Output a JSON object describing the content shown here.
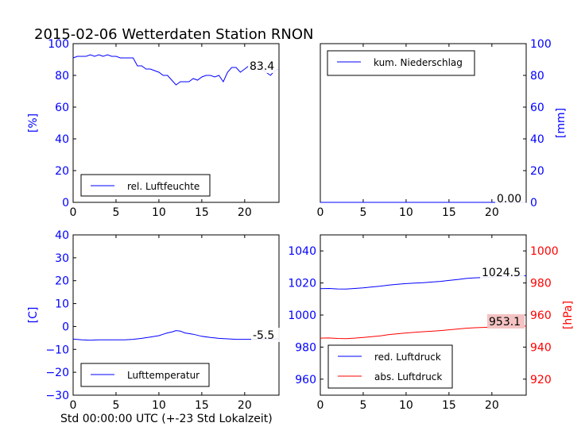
{
  "figure": {
    "title": "2015-02-06 Wetterdaten Station RNON",
    "xlabel": "Std 00:00:00 UTC (+-23 Std Lokalzeit)"
  },
  "colors": {
    "blue": "#0000ff",
    "red": "#ff0000",
    "annot_bg_red": "#f4c2c2"
  },
  "chart_data": [
    {
      "id": "humidity",
      "type": "line",
      "ylabel": "[%]",
      "xlim": [
        0,
        24
      ],
      "ylim": [
        0,
        100
      ],
      "xticks": [
        0,
        5,
        10,
        15,
        20
      ],
      "yticks": [
        0,
        20,
        40,
        60,
        80,
        100
      ],
      "legend": {
        "label": "rel. Luftfeuchte",
        "placement": "lower-left"
      },
      "annotation": "83.4",
      "series": [
        {
          "name": "rel. Luftfeuchte",
          "color": "#0000ff",
          "x": [
            0,
            0.5,
            1,
            1.5,
            2,
            2.5,
            3,
            3.5,
            4,
            4.5,
            5,
            5.5,
            6,
            6.5,
            7,
            7.5,
            8,
            8.5,
            9,
            9.5,
            10,
            10.5,
            11,
            11.5,
            12,
            12.5,
            13,
            13.5,
            14,
            14.5,
            15,
            15.5,
            16,
            16.5,
            17,
            17.5,
            18,
            18.5,
            19,
            19.5,
            20,
            20.5,
            21,
            21.5,
            22,
            22.5,
            23,
            23.5,
            24
          ],
          "y": [
            91,
            92,
            92,
            92,
            93,
            92,
            93,
            92,
            93,
            92,
            92,
            91,
            91,
            91,
            91,
            86,
            86,
            84,
            84,
            83,
            82,
            80,
            80,
            77,
            74,
            76,
            76,
            76,
            78,
            77,
            79,
            80,
            80,
            79,
            80,
            76,
            82,
            85,
            85,
            82,
            84,
            86,
            85,
            86,
            84,
            82,
            80,
            83,
            84
          ]
        }
      ]
    },
    {
      "id": "precipitation",
      "type": "line",
      "ylabel": "[mm]",
      "xlim": [
        0,
        24
      ],
      "ylim": [
        0,
        100
      ],
      "xticks": [
        0,
        5,
        10,
        15,
        20
      ],
      "yticks": [
        0,
        20,
        40,
        60,
        80,
        100
      ],
      "legend": {
        "label": "kum. Niederschlag",
        "placement": "upper-left"
      },
      "annotation": "0.00",
      "series": [
        {
          "name": "kum. Niederschlag",
          "color": "#0000ff",
          "x": [
            0,
            24
          ],
          "y": [
            0,
            0
          ]
        }
      ]
    },
    {
      "id": "temperature",
      "type": "line",
      "ylabel": "[C]",
      "xlim": [
        0,
        24
      ],
      "ylim": [
        -30,
        40
      ],
      "xticks": [
        0,
        5,
        10,
        15,
        20
      ],
      "yticks": [
        -30,
        -20,
        -10,
        0,
        10,
        20,
        30,
        40
      ],
      "legend": {
        "label": "Lufttemperatur",
        "placement": "lower-left"
      },
      "annotation": "-5.5",
      "series": [
        {
          "name": "Lufttemperatur",
          "color": "#0000ff",
          "x": [
            0,
            1,
            2,
            3,
            4,
            5,
            6,
            7,
            8,
            9,
            10,
            10.5,
            11,
            11.5,
            12,
            12.5,
            13,
            14,
            15,
            16,
            17,
            18,
            19,
            20,
            21,
            22,
            23,
            24
          ],
          "y": [
            -5.5,
            -5.8,
            -6,
            -5.8,
            -5.8,
            -5.8,
            -5.8,
            -5.6,
            -5.2,
            -4.6,
            -4,
            -3.4,
            -2.8,
            -2.4,
            -1.8,
            -2,
            -2.8,
            -3.4,
            -4.3,
            -4.8,
            -5.2,
            -5.4,
            -5.6,
            -5.6,
            -5.6,
            -5.5,
            -5.5,
            -5.5
          ]
        }
      ]
    },
    {
      "id": "pressure",
      "type": "line",
      "xlim": [
        0,
        24
      ],
      "ylim_left": [
        950,
        1050
      ],
      "ylim_right": [
        910,
        1010
      ],
      "ylabel_right": "[hPa]",
      "xticks": [
        0,
        5,
        10,
        15,
        20
      ],
      "yticks_left": [
        960,
        980,
        1000,
        1020,
        1040
      ],
      "yticks_right": [
        920,
        940,
        960,
        980,
        1000
      ],
      "legend": {
        "labels": [
          "red. Luftdruck",
          "abs. Luftdruck"
        ],
        "placement": "lower-left"
      },
      "annotation_left": "1024.5",
      "annotation_right": "953.1",
      "series": [
        {
          "name": "red. Luftdruck",
          "color": "#0000ff",
          "axis": "left",
          "x": [
            0,
            1,
            2,
            3,
            4,
            5,
            6,
            7,
            8,
            9,
            10,
            11,
            12,
            13,
            14,
            15,
            16,
            17,
            18,
            19,
            20,
            21,
            22,
            23,
            24
          ],
          "y": [
            1016.5,
            1016.6,
            1016.3,
            1016.2,
            1016.6,
            1017,
            1017.5,
            1018,
            1018.7,
            1019.2,
            1019.6,
            1019.9,
            1020.2,
            1020.6,
            1021,
            1021.6,
            1022.2,
            1022.8,
            1023.2,
            1023.4,
            1023.7,
            1024,
            1024.2,
            1024.4,
            1024.5
          ]
        },
        {
          "name": "abs. Luftdruck",
          "color": "#ff0000",
          "axis": "right",
          "x": [
            0,
            1,
            2,
            3,
            4,
            5,
            6,
            7,
            8,
            9,
            10,
            11,
            12,
            13,
            14,
            15,
            16,
            17,
            18,
            19,
            20,
            21,
            22,
            23,
            24
          ],
          "y": [
            945.6,
            945.7,
            945.4,
            945.3,
            945.6,
            946,
            946.5,
            947,
            947.8,
            948.3,
            948.8,
            949.2,
            949.6,
            949.9,
            950.3,
            950.8,
            951.3,
            951.8,
            952.1,
            952.3,
            952.5,
            952.7,
            952.9,
            953,
            953.1
          ]
        }
      ]
    }
  ]
}
